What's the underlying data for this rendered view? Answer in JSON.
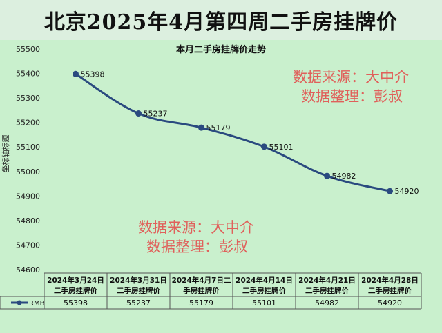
{
  "header": {
    "title": "北京2025年4月第四周二手房挂牌价"
  },
  "watermarks": [
    {
      "line1": "数据来源：大中介",
      "line2": "数据整理：彭叔"
    },
    {
      "line1": "数据来源：大中介",
      "line2": "数据整理：彭叔"
    }
  ],
  "chart_data": {
    "type": "line",
    "title": "本月二手房挂牌价走势",
    "ylabel": "坐标轴标题",
    "ylim": [
      54600,
      55500
    ],
    "yticks": [
      54600,
      54700,
      54800,
      54900,
      55000,
      55100,
      55200,
      55300,
      55400,
      55500
    ],
    "categories": [
      [
        "2024年3月24日",
        "二手房挂牌价"
      ],
      [
        "2024年3月31日",
        "二手房挂牌价"
      ],
      [
        "2024年4月7日二",
        "手房挂牌价"
      ],
      [
        "2024年4月14日",
        "二手房挂牌价"
      ],
      [
        "2024年4月21日",
        "二手房挂牌价"
      ],
      [
        "2024年4月28日",
        "二手房挂牌价"
      ]
    ],
    "series": [
      {
        "name": "RMB",
        "values": [
          55398,
          55237,
          55179,
          55101,
          54982,
          54920
        ]
      }
    ],
    "grid": false,
    "legend": "data-table",
    "colors": {
      "line": "#2a4a7f",
      "marker": "#2a4a7f"
    }
  }
}
